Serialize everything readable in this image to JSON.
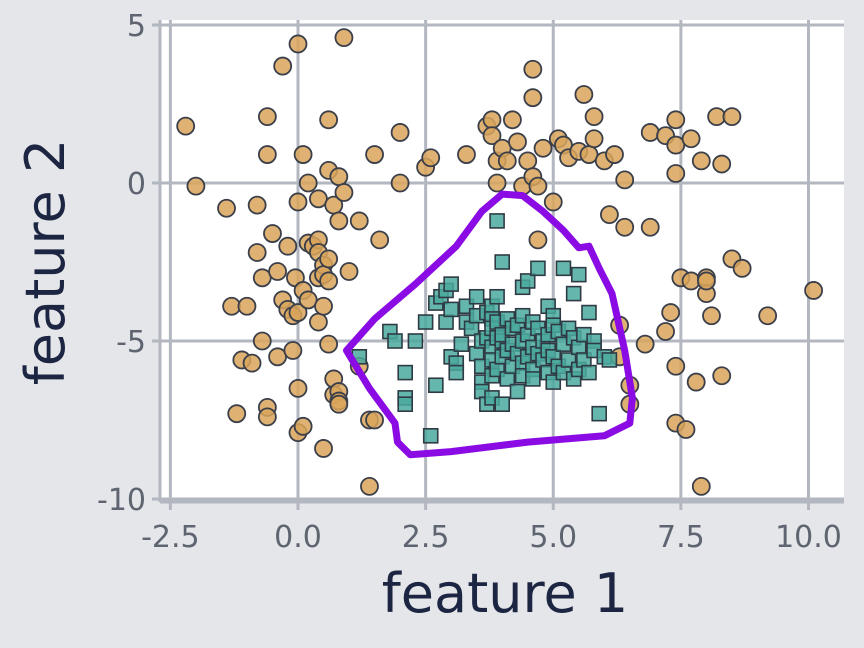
{
  "chart_data": {
    "type": "scatter",
    "title": "",
    "xlabel": "feature 1",
    "ylabel": "feature 2",
    "xlim": [
      -2.8,
      10.7
    ],
    "ylim": [
      -10.2,
      5.3
    ],
    "xticks": [
      -2.5,
      0.0,
      2.5,
      5.0,
      7.5,
      10.0
    ],
    "xtick_labels": [
      "-2.5",
      "0.0",
      "2.5",
      "5.0",
      "7.5",
      "10.0"
    ],
    "yticks": [
      5,
      0,
      -5,
      -10
    ],
    "ytick_labels": [
      "5",
      "0",
      "-5",
      "-10"
    ],
    "grid": true,
    "series": [
      {
        "marker": "circle",
        "color": "#d9a55a",
        "points": [
          [
            -2.2,
            1.8
          ],
          [
            -2.0,
            -0.1
          ],
          [
            -1.4,
            -0.8
          ],
          [
            -1.3,
            -3.9
          ],
          [
            -1.2,
            -7.3
          ],
          [
            -1.1,
            -5.6
          ],
          [
            -1.0,
            -3.9
          ],
          [
            -0.9,
            -5.7
          ],
          [
            -0.8,
            -0.7
          ],
          [
            -0.8,
            -2.2
          ],
          [
            -0.7,
            -3.0
          ],
          [
            -0.7,
            -5.0
          ],
          [
            -0.6,
            -7.1
          ],
          [
            -0.6,
            -7.4
          ],
          [
            -0.6,
            2.1
          ],
          [
            -0.6,
            0.9
          ],
          [
            -0.5,
            -1.6
          ],
          [
            -0.4,
            -2.8
          ],
          [
            -0.4,
            -5.5
          ],
          [
            -0.3,
            -3.7
          ],
          [
            -0.3,
            3.7
          ],
          [
            -0.2,
            -2.0
          ],
          [
            -0.2,
            -4.0
          ],
          [
            -0.1,
            -4.2
          ],
          [
            -0.1,
            -5.3
          ],
          [
            -0.05,
            -3.0
          ],
          [
            0.0,
            -6.5
          ],
          [
            0.0,
            -4.1
          ],
          [
            0.0,
            -7.9
          ],
          [
            0.0,
            4.4
          ],
          [
            0.0,
            -0.6
          ],
          [
            0.1,
            -7.7
          ],
          [
            0.1,
            0.9
          ],
          [
            0.1,
            -3.4
          ],
          [
            0.2,
            -3.7
          ],
          [
            0.2,
            -1.9
          ],
          [
            0.2,
            0.0
          ],
          [
            0.3,
            -2.0
          ],
          [
            0.4,
            -1.8
          ],
          [
            0.4,
            -2.2
          ],
          [
            0.4,
            -0.5
          ],
          [
            0.4,
            -3.0
          ],
          [
            0.4,
            -4.4
          ],
          [
            0.5,
            -2.6
          ],
          [
            0.5,
            -3.9
          ],
          [
            0.5,
            -8.4
          ],
          [
            0.5,
            -2.9
          ],
          [
            0.6,
            2.0
          ],
          [
            0.6,
            -2.4
          ],
          [
            0.6,
            -3.1
          ],
          [
            0.6,
            -5.1
          ],
          [
            0.6,
            0.4
          ],
          [
            0.7,
            -6.2
          ],
          [
            0.7,
            -0.7
          ],
          [
            0.7,
            -6.7
          ],
          [
            0.8,
            -1.2
          ],
          [
            0.8,
            -6.6
          ],
          [
            0.8,
            -6.9
          ],
          [
            0.8,
            -7.0
          ],
          [
            0.8,
            0.2
          ],
          [
            0.9,
            -0.3
          ],
          [
            0.9,
            4.6
          ],
          [
            1.0,
            -2.8
          ],
          [
            1.2,
            -5.8
          ],
          [
            1.2,
            -1.2
          ],
          [
            1.4,
            -7.5
          ],
          [
            1.4,
            -9.6
          ],
          [
            1.5,
            -7.5
          ],
          [
            1.5,
            0.9
          ],
          [
            1.6,
            -1.8
          ],
          [
            2.0,
            1.6
          ],
          [
            2.0,
            0.0
          ],
          [
            2.5,
            0.5
          ],
          [
            2.6,
            0.8
          ],
          [
            3.3,
            0.9
          ],
          [
            3.7,
            1.8
          ],
          [
            3.8,
            2.0
          ],
          [
            3.8,
            1.5
          ],
          [
            3.9,
            0.7
          ],
          [
            3.9,
            0.0
          ],
          [
            4.0,
            1.1
          ],
          [
            4.1,
            0.7
          ],
          [
            4.2,
            2.0
          ],
          [
            4.3,
            1.3
          ],
          [
            4.4,
            -0.1
          ],
          [
            4.5,
            0.7
          ],
          [
            4.6,
            2.7
          ],
          [
            4.6,
            0.2
          ],
          [
            4.6,
            3.6
          ],
          [
            4.7,
            -0.1
          ],
          [
            4.7,
            -1.8
          ],
          [
            4.8,
            1.1
          ],
          [
            5.0,
            -0.6
          ],
          [
            5.1,
            1.4
          ],
          [
            5.2,
            1.2
          ],
          [
            5.3,
            0.8
          ],
          [
            5.5,
            1.0
          ],
          [
            5.6,
            2.8
          ],
          [
            5.7,
            0.9
          ],
          [
            5.8,
            2.1
          ],
          [
            5.8,
            1.4
          ],
          [
            6.0,
            0.7
          ],
          [
            6.1,
            -1.0
          ],
          [
            6.2,
            0.9
          ],
          [
            6.4,
            0.1
          ],
          [
            6.4,
            -1.4
          ],
          [
            6.5,
            -6.4
          ],
          [
            6.5,
            -7.0
          ],
          [
            6.3,
            -4.5
          ],
          [
            6.3,
            -5.5
          ],
          [
            6.8,
            -5.1
          ],
          [
            6.9,
            1.6
          ],
          [
            6.9,
            -1.4
          ],
          [
            7.2,
            1.5
          ],
          [
            7.2,
            -4.7
          ],
          [
            7.4,
            2.0
          ],
          [
            7.4,
            1.2
          ],
          [
            7.4,
            0.3
          ],
          [
            7.3,
            -4.1
          ],
          [
            7.4,
            -5.8
          ],
          [
            7.4,
            -7.6
          ],
          [
            7.5,
            -3.0
          ],
          [
            7.6,
            -7.8
          ],
          [
            7.7,
            -3.1
          ],
          [
            7.7,
            1.4
          ],
          [
            7.8,
            -6.3
          ],
          [
            7.9,
            0.7
          ],
          [
            7.9,
            -9.6
          ],
          [
            8.0,
            -3.0
          ],
          [
            8.0,
            -3.5
          ],
          [
            8.0,
            -3.1
          ],
          [
            8.1,
            -4.2
          ],
          [
            8.2,
            2.1
          ],
          [
            8.3,
            0.6
          ],
          [
            8.3,
            -6.1
          ],
          [
            8.5,
            2.1
          ],
          [
            8.5,
            -2.4
          ],
          [
            8.7,
            -2.7
          ],
          [
            9.2,
            -4.2
          ],
          [
            10.1,
            -3.4
          ]
        ]
      },
      {
        "marker": "square",
        "color": "#4aa99e",
        "points": [
          [
            1.2,
            -5.5
          ],
          [
            1.8,
            -4.7
          ],
          [
            1.9,
            -5.0
          ],
          [
            2.1,
            -6.8
          ],
          [
            2.1,
            -7.0
          ],
          [
            2.1,
            -6.0
          ],
          [
            2.3,
            -5.0
          ],
          [
            2.5,
            -4.4
          ],
          [
            2.6,
            -8.0
          ],
          [
            2.7,
            -3.8
          ],
          [
            2.7,
            -6.4
          ],
          [
            2.8,
            -3.6
          ],
          [
            2.9,
            -4.4
          ],
          [
            2.9,
            -3.4
          ],
          [
            3.0,
            -3.2
          ],
          [
            3.0,
            -4.0
          ],
          [
            3.0,
            -5.5
          ],
          [
            3.1,
            -5.7
          ],
          [
            3.1,
            -6.0
          ],
          [
            3.2,
            -5.1
          ],
          [
            3.3,
            -4.4
          ],
          [
            3.3,
            -3.9
          ],
          [
            3.4,
            -4.6
          ],
          [
            3.5,
            -3.6
          ],
          [
            3.5,
            -4.2
          ],
          [
            3.5,
            -5.4
          ],
          [
            3.6,
            -6.3
          ],
          [
            3.6,
            -6.6
          ],
          [
            3.6,
            -5.8
          ],
          [
            3.6,
            -5.0
          ],
          [
            3.7,
            -4.1
          ],
          [
            3.7,
            -4.9
          ],
          [
            3.7,
            -7.0
          ],
          [
            3.8,
            -3.9
          ],
          [
            3.8,
            -4.3
          ],
          [
            3.8,
            -4.6
          ],
          [
            3.8,
            -5.2
          ],
          [
            3.8,
            -5.6
          ],
          [
            3.8,
            -6.1
          ],
          [
            3.8,
            -6.8
          ],
          [
            3.9,
            -3.6
          ],
          [
            3.9,
            -4.4
          ],
          [
            3.9,
            -4.9
          ],
          [
            3.9,
            -5.9
          ],
          [
            3.9,
            -1.2
          ],
          [
            4.0,
            -2.5
          ],
          [
            4.0,
            -5.0
          ],
          [
            4.0,
            -5.5
          ],
          [
            4.0,
            -7.0
          ],
          [
            4.0,
            -4.8
          ],
          [
            4.1,
            -4.3
          ],
          [
            4.1,
            -5.3
          ],
          [
            4.1,
            -6.2
          ],
          [
            4.2,
            -4.6
          ],
          [
            4.2,
            -5.1
          ],
          [
            4.2,
            -5.8
          ],
          [
            4.3,
            -4.5
          ],
          [
            4.3,
            -5.4
          ],
          [
            4.3,
            -6.6
          ],
          [
            4.4,
            -3.3
          ],
          [
            4.4,
            -4.2
          ],
          [
            4.4,
            -5.0
          ],
          [
            4.4,
            -5.7
          ],
          [
            4.4,
            -6.1
          ],
          [
            4.5,
            -3.1
          ],
          [
            4.5,
            -4.8
          ],
          [
            4.5,
            -5.5
          ],
          [
            4.6,
            -4.4
          ],
          [
            4.6,
            -5.2
          ],
          [
            4.6,
            -5.9
          ],
          [
            4.6,
            -6.2
          ],
          [
            4.7,
            -2.7
          ],
          [
            4.7,
            -4.6
          ],
          [
            4.7,
            -5.4
          ],
          [
            4.8,
            -5.0
          ],
          [
            4.8,
            -5.6
          ],
          [
            4.9,
            -3.9
          ],
          [
            4.9,
            -4.8
          ],
          [
            4.9,
            -5.3
          ],
          [
            4.9,
            -6.0
          ],
          [
            5.0,
            -4.2
          ],
          [
            5.0,
            -4.5
          ],
          [
            5.0,
            -5.5
          ],
          [
            5.0,
            -6.3
          ],
          [
            5.1,
            -5.8
          ],
          [
            5.1,
            -4.7
          ],
          [
            5.2,
            -2.7
          ],
          [
            5.2,
            -5.1
          ],
          [
            5.2,
            -6.0
          ],
          [
            5.3,
            -4.6
          ],
          [
            5.3,
            -5.6
          ],
          [
            5.4,
            -3.5
          ],
          [
            5.4,
            -4.9
          ],
          [
            5.4,
            -6.2
          ],
          [
            5.5,
            -2.9
          ],
          [
            5.5,
            -5.2
          ],
          [
            5.5,
            -5.9
          ],
          [
            5.6,
            -4.8
          ],
          [
            5.6,
            -5.6
          ],
          [
            5.7,
            -4.1
          ],
          [
            5.7,
            -6.0
          ],
          [
            5.8,
            -5.0
          ],
          [
            5.8,
            -5.3
          ],
          [
            5.9,
            -7.3
          ],
          [
            6.0,
            -5.5
          ],
          [
            6.1,
            -5.6
          ]
        ]
      }
    ],
    "annotation": {
      "type": "closed-curve",
      "color": "#8a0be3",
      "points": [
        [
          0.95,
          -5.3
        ],
        [
          1.5,
          -4.3
        ],
        [
          2.3,
          -3.2
        ],
        [
          3.1,
          -2.0
        ],
        [
          3.6,
          -0.9
        ],
        [
          4.0,
          -0.35
        ],
        [
          4.4,
          -0.4
        ],
        [
          4.8,
          -0.9
        ],
        [
          5.2,
          -1.5
        ],
        [
          5.5,
          -2.05
        ],
        [
          5.7,
          -2.0
        ],
        [
          5.9,
          -2.7
        ],
        [
          6.15,
          -3.5
        ],
        [
          6.4,
          -5.3
        ],
        [
          6.55,
          -6.8
        ],
        [
          6.5,
          -7.6
        ],
        [
          6.0,
          -8.0
        ],
        [
          4.5,
          -8.2
        ],
        [
          3.0,
          -8.5
        ],
        [
          2.2,
          -8.6
        ],
        [
          1.95,
          -8.2
        ],
        [
          1.9,
          -7.6
        ],
        [
          1.4,
          -6.5
        ],
        [
          0.95,
          -5.3
        ]
      ]
    }
  }
}
